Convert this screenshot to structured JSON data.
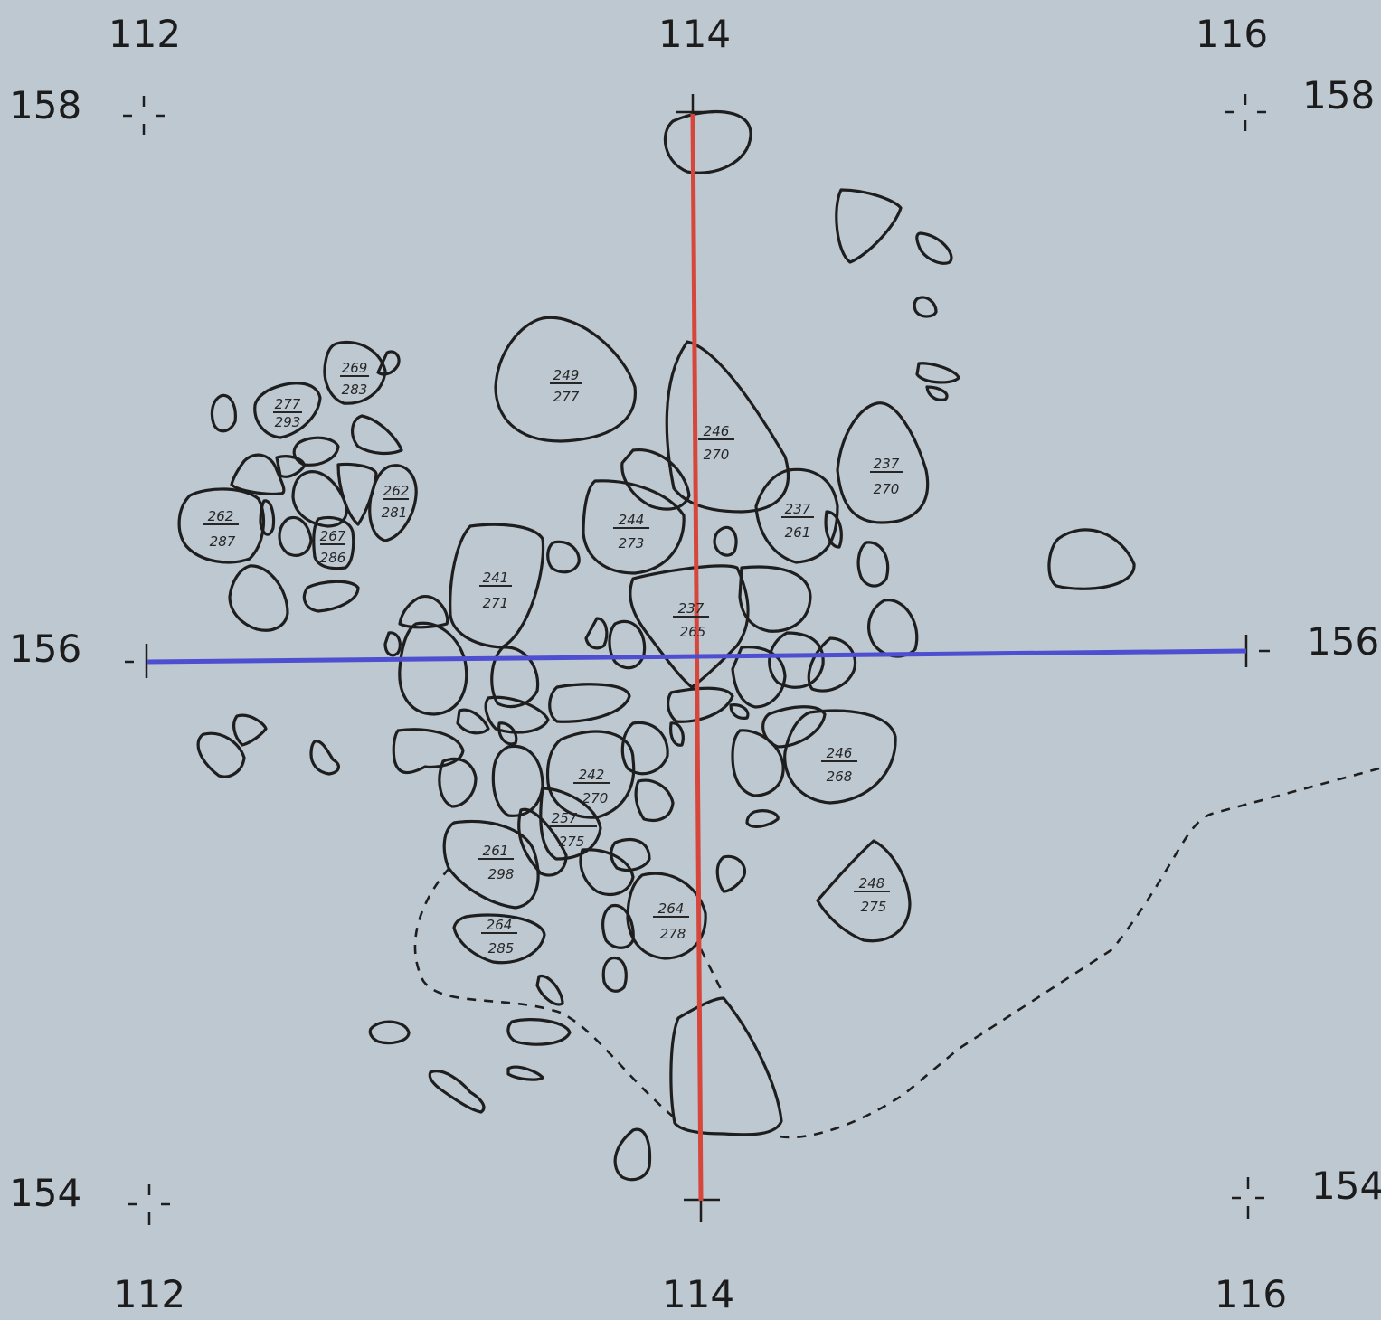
{
  "grid": {
    "top_x_labels": [
      "112",
      "114",
      "116"
    ],
    "bottom_x_labels": [
      "112",
      "114",
      "116"
    ],
    "left_y_labels": [
      "158",
      "156",
      "154"
    ],
    "right_y_labels": [
      "158",
      "156",
      "154"
    ]
  },
  "section_lines": {
    "vertical_color": "#d6463a",
    "horizontal_color": "#4e4fd0"
  },
  "stone_labels": [
    {
      "id": "s249",
      "top": "249",
      "bottom": "277"
    },
    {
      "id": "s246a",
      "top": "246",
      "bottom": "270"
    },
    {
      "id": "s237a",
      "top": "237",
      "bottom": "270"
    },
    {
      "id": "s237b",
      "top": "237",
      "bottom": "261"
    },
    {
      "id": "s244",
      "top": "244",
      "bottom": "273"
    },
    {
      "id": "s241",
      "top": "241",
      "bottom": "271"
    },
    {
      "id": "s237c",
      "top": "237",
      "bottom": "265"
    },
    {
      "id": "s269",
      "top": "269",
      "bottom": "283"
    },
    {
      "id": "s277",
      "top": "277",
      "bottom": "293"
    },
    {
      "id": "s262a",
      "top": "262",
      "bottom": "287"
    },
    {
      "id": "s262b",
      "top": "262",
      "bottom": "281"
    },
    {
      "id": "s267",
      "top": "267",
      "bottom": "286"
    },
    {
      "id": "s246b",
      "top": "246",
      "bottom": "268"
    },
    {
      "id": "s242",
      "top": "242",
      "bottom": "270"
    },
    {
      "id": "s257",
      "top": "257",
      "bottom": "275"
    },
    {
      "id": "s261",
      "top": "261",
      "bottom": "298"
    },
    {
      "id": "s264a",
      "top": "264",
      "bottom": "285"
    },
    {
      "id": "s264b",
      "top": "264",
      "bottom": "278"
    },
    {
      "id": "s248",
      "top": "248",
      "bottom": "275"
    }
  ]
}
